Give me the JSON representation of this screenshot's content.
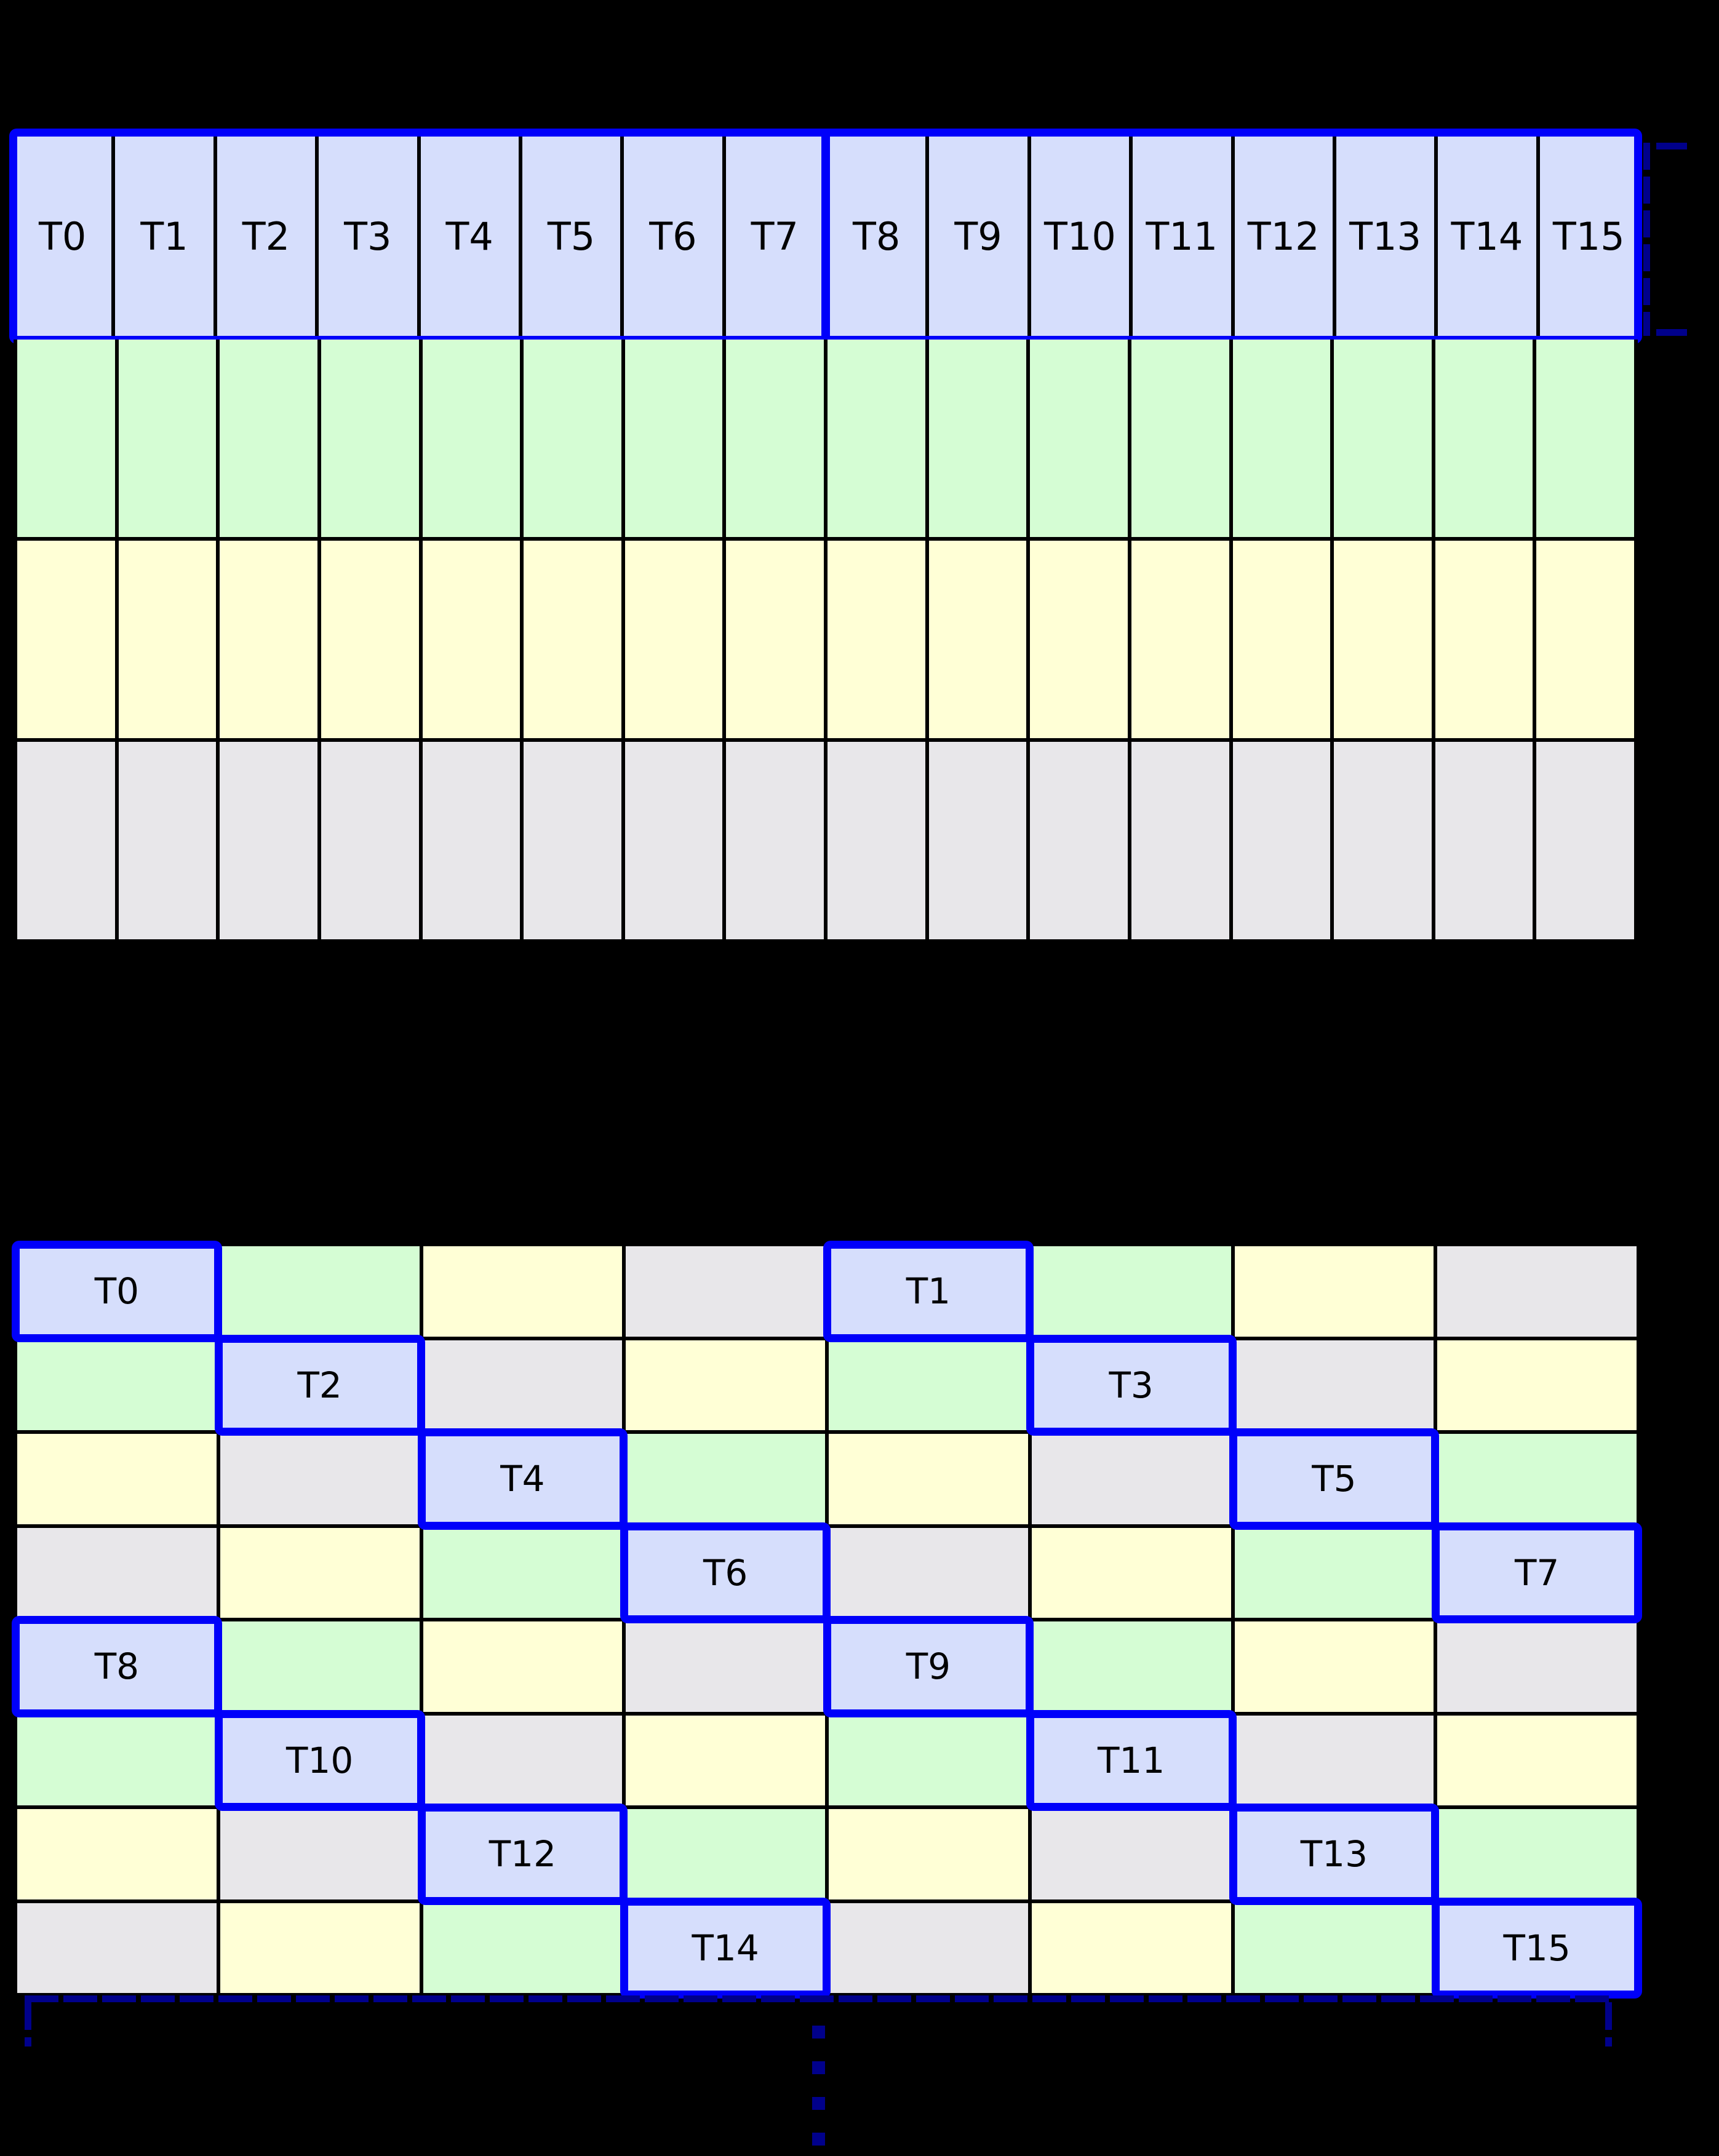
{
  "palette": {
    "thread": "#d6defc",
    "green": "#d5fdd4",
    "yellow": "#ffffd6",
    "gray": "#e8e7ea",
    "grid_line": "#000000",
    "highlight_border": "#0000fa",
    "dashed_annotation": "#00008b",
    "background": "#000000",
    "label_text": "#000000"
  },
  "top_grid": {
    "columns": 16,
    "header_labels": [
      "T0",
      "T1",
      "T2",
      "T3",
      "T4",
      "T5",
      "T6",
      "T7",
      "T8",
      "T9",
      "T10",
      "T11",
      "T12",
      "T13",
      "T14",
      "T15"
    ],
    "warp_split_after_column": 8,
    "body_rows": [
      "green",
      "yellow",
      "gray"
    ]
  },
  "bottom_grid": {
    "rows": 8,
    "columns": 8,
    "palette_keys": [
      "thread",
      "green",
      "yellow",
      "gray"
    ],
    "color_rule": "colorIndex = (col mod 4) XOR (row mod 4)",
    "cell_color_indices": [
      [
        0,
        1,
        2,
        3,
        0,
        1,
        2,
        3
      ],
      [
        1,
        0,
        3,
        2,
        1,
        0,
        3,
        2
      ],
      [
        2,
        3,
        0,
        1,
        2,
        3,
        0,
        1
      ],
      [
        3,
        2,
        1,
        0,
        3,
        2,
        1,
        0
      ],
      [
        0,
        1,
        2,
        3,
        0,
        1,
        2,
        3
      ],
      [
        1,
        0,
        3,
        2,
        1,
        0,
        3,
        2
      ],
      [
        2,
        3,
        0,
        1,
        2,
        3,
        0,
        1
      ],
      [
        3,
        2,
        1,
        0,
        3,
        2,
        1,
        0
      ]
    ],
    "threads": [
      {
        "label": "T0",
        "row": 0,
        "col": 0
      },
      {
        "label": "T1",
        "row": 0,
        "col": 4
      },
      {
        "label": "T2",
        "row": 1,
        "col": 1
      },
      {
        "label": "T3",
        "row": 1,
        "col": 5
      },
      {
        "label": "T4",
        "row": 2,
        "col": 2
      },
      {
        "label": "T5",
        "row": 2,
        "col": 6
      },
      {
        "label": "T6",
        "row": 3,
        "col": 3
      },
      {
        "label": "T7",
        "row": 3,
        "col": 7
      },
      {
        "label": "T8",
        "row": 4,
        "col": 0
      },
      {
        "label": "T9",
        "row": 4,
        "col": 4
      },
      {
        "label": "T10",
        "row": 5,
        "col": 1
      },
      {
        "label": "T11",
        "row": 5,
        "col": 5
      },
      {
        "label": "T12",
        "row": 6,
        "col": 2
      },
      {
        "label": "T13",
        "row": 6,
        "col": 6
      },
      {
        "label": "T14",
        "row": 7,
        "col": 3
      },
      {
        "label": "T15",
        "row": 7,
        "col": 7
      }
    ]
  },
  "annotations": {
    "header_row_bracket": {
      "shape": "dashed-square-bracket",
      "color": "#00008b",
      "location": "right-of-header-row"
    },
    "grid_span_bracket": {
      "shape": "dashed-line-with-down-ticks",
      "color": "#00008b",
      "location": "below-bottom-grid"
    },
    "continuation_ellipsis": {
      "shape": "vertical-dashed-ellipsis",
      "dash_count": 4,
      "color": "#00008b",
      "location": "bottom-center"
    }
  }
}
